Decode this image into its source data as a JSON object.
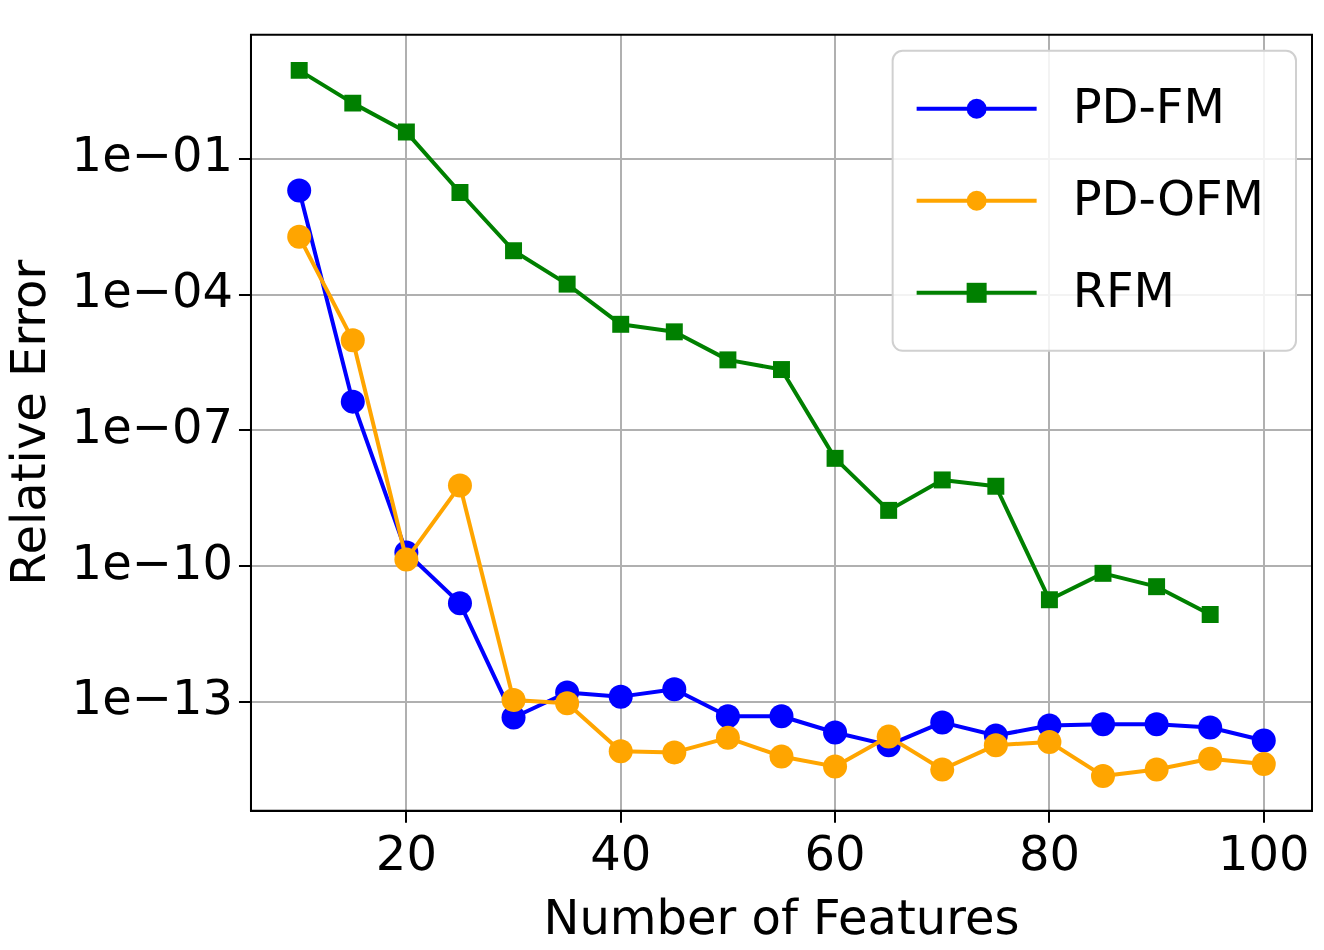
{
  "chart_data": {
    "type": "line",
    "xlabel": "Number of Features",
    "ylabel": "Relative Error",
    "log": "y",
    "grid": true,
    "legend": "top right",
    "line_style": "solid",
    "x": [
      10,
      15,
      20,
      25,
      30,
      35,
      40,
      45,
      50,
      55,
      60,
      65,
      70,
      75,
      80,
      85,
      90,
      95,
      100
    ],
    "xlim": [
      5.5,
      104.5
    ],
    "xticks": [
      20,
      40,
      60,
      80,
      100
    ],
    "ylim": [
      3.9e-16,
      55
    ],
    "yticks": [
      {
        "value": 0.1,
        "label": "1e−01"
      },
      {
        "value": 0.0001,
        "label": "1e−04"
      },
      {
        "value": 1e-07,
        "label": "1e−07"
      },
      {
        "value": 1e-10,
        "label": "1e−10"
      },
      {
        "value": 1e-13,
        "label": "1e−13"
      }
    ],
    "series": [
      {
        "name": "PD-FM",
        "color": "#0000ff",
        "marker": "circle",
        "values": [
          0.02,
          4.3e-07,
          2e-10,
          1.5e-11,
          4.5e-14,
          1.6e-13,
          1.3e-13,
          1.9e-13,
          4.8e-14,
          4.8e-14,
          2.1e-14,
          1.1e-14,
          3.5e-14,
          1.8e-14,
          3e-14,
          3.2e-14,
          3.2e-14,
          2.7e-14,
          1.4e-14
        ]
      },
      {
        "name": "PD-OFM",
        "color": "#ffa500",
        "marker": "circle",
        "values": [
          0.0019,
          9.8e-06,
          1.4e-10,
          6e-09,
          1.1e-13,
          9.3e-14,
          8.1e-15,
          7.6e-15,
          1.6e-14,
          6.2e-15,
          3.7e-15,
          1.7e-14,
          3.2e-15,
          1.1e-14,
          1.3e-14,
          2.3e-15,
          3.2e-15,
          5.5e-15,
          4.2e-15
        ]
      },
      {
        "name": "RFM",
        "color": "#008000",
        "marker": "square",
        "values": [
          9,
          1.7,
          0.39,
          0.018,
          0.00093,
          0.00017,
          2.2e-05,
          1.5e-05,
          3.6e-06,
          2.2e-06,
          2.4e-08,
          1.7e-09,
          8e-09,
          5.8e-09,
          1.8e-11,
          6.9e-11,
          3.5e-11,
          8.5e-12,
          null
        ]
      }
    ]
  }
}
